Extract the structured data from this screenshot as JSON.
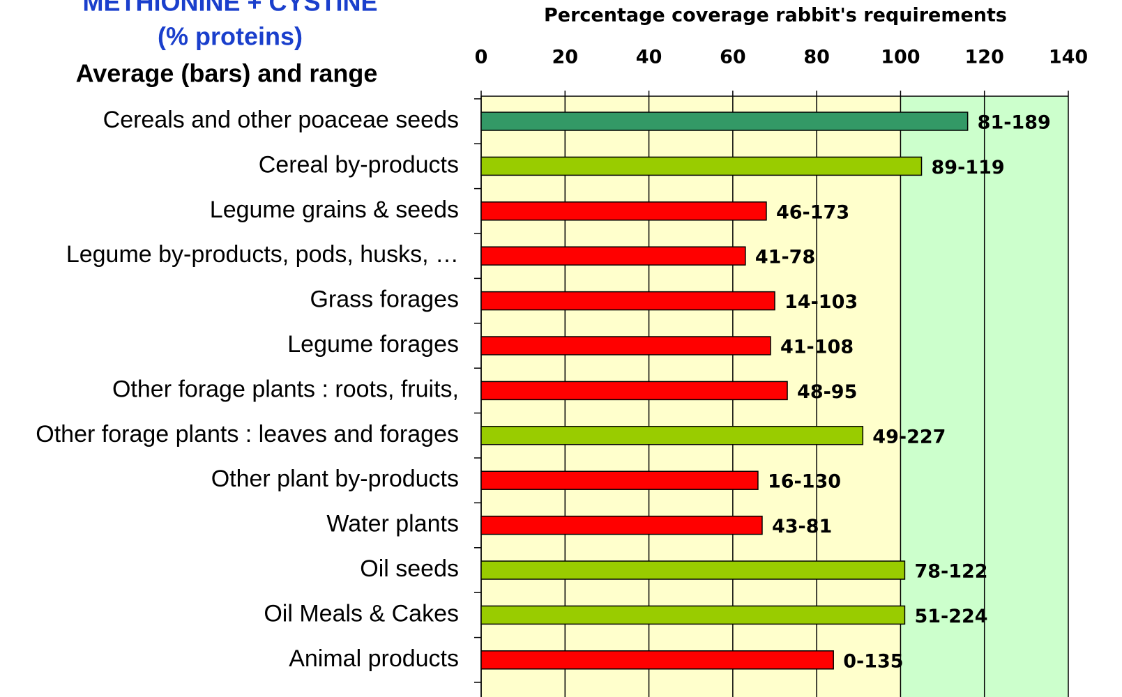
{
  "chart_data": {
    "type": "barh",
    "title": "METHIONINE + CYSTINE",
    "subtitle": "(% proteins)",
    "subtitle2": "Average (bars) and range",
    "x_label": "Percentage coverage rabbit's requirements",
    "categories": [
      "Cereals and other poaceae seeds",
      "Cereal by-products",
      "Legume grains & seeds",
      "Legume by-products, pods, husks, …",
      "Grass forages",
      "Legume forages",
      "Other forage plants : roots, fruits,",
      "Other forage plants : leaves and forages",
      "Other plant by-products",
      "Water plants",
      "Oil seeds",
      "Oil Meals & Cakes",
      "Animal products"
    ],
    "values": [
      116,
      105,
      68,
      63,
      70,
      69,
      73,
      91,
      66,
      67,
      101,
      101,
      84
    ],
    "colors": [
      "#339966",
      "#99cc00",
      "#ff0000",
      "#ff0000",
      "#ff0000",
      "#ff0000",
      "#ff0000",
      "#99cc00",
      "#ff0000",
      "#ff0000",
      "#99cc00",
      "#99cc00",
      "#ff0000"
    ],
    "range_labels": [
      "81-189",
      "89-119",
      "46-173",
      "41-78",
      "14-103",
      "41-108",
      "48-95",
      "49-227",
      "16-130",
      "43-81",
      "78-122",
      "51-224",
      "0-135"
    ],
    "xlim": [
      0,
      140
    ],
    "xticks": [
      0,
      20,
      40,
      60,
      80,
      100,
      120,
      140
    ],
    "bands": [
      {
        "from": 0,
        "to": 100,
        "color": "#ffffcc"
      },
      {
        "from": 100,
        "to": 140,
        "color": "#ccffcc"
      }
    ],
    "grid": true
  }
}
